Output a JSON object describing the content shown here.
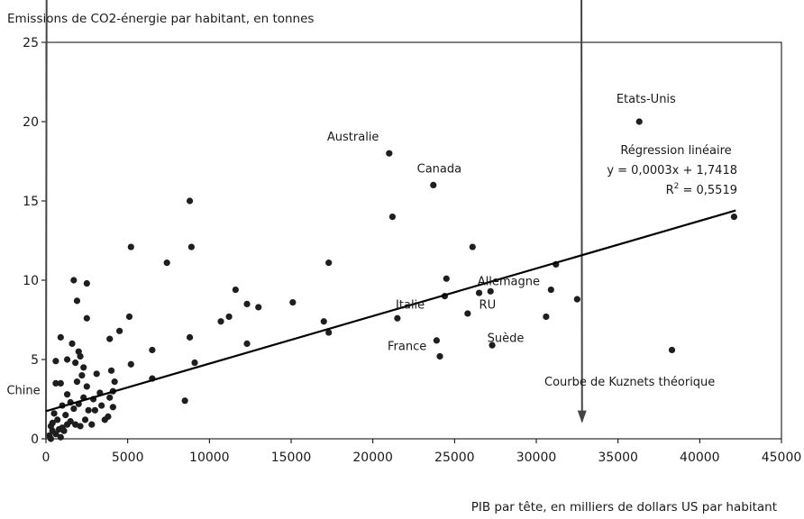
{
  "chart_data": {
    "type": "scatter",
    "title": "",
    "ylabel": "Emissions de CO2-énergie par habitant, en tonnes",
    "xlabel": "PIB par tête, en milliers de dollars US par habitant",
    "xlim": [
      0,
      45000
    ],
    "ylim": [
      0,
      25
    ],
    "x_ticks": [
      "0",
      "5000",
      "10000",
      "15000",
      "20000",
      "25000",
      "30000",
      "35000",
      "40000",
      "45000"
    ],
    "y_ticks": [
      "0",
      "5",
      "10",
      "15",
      "20",
      "25"
    ],
    "grid": false,
    "regression": {
      "title": "Régression linéaire",
      "equation": "y = 0,0003x + 1,7418",
      "r2_prefix": "R",
      "r2_sup": "2",
      "r2_suffix": " = 0,5519",
      "slope": 0.0003,
      "intercept": 1.7418,
      "x_range": [
        0,
        42200
      ]
    },
    "kuznets": {
      "label": "Courbe de Kuznets théorique",
      "start": [
        0,
        0
      ],
      "control": [
        15700,
        23200
      ],
      "end": [
        32800,
        1.1
      ]
    },
    "annotations": [
      {
        "text": "Etats-Unis",
        "x": 34900,
        "y": 21.2
      },
      {
        "text": "Australie",
        "x": 17200,
        "y": 18.8
      },
      {
        "text": "Canada",
        "x": 22700,
        "y": 16.8
      },
      {
        "text": "Allemagne",
        "x": 26400,
        "y": 9.7
      },
      {
        "text": "RU",
        "x": 26500,
        "y": 8.2
      },
      {
        "text": "Italie",
        "x": 21400,
        "y": 8.2
      },
      {
        "text": "France",
        "x": 20900,
        "y": 5.6
      },
      {
        "text": "Suède",
        "x": 27000,
        "y": 6.1
      },
      {
        "text": "Chine",
        "x": -2400,
        "y": 2.8
      }
    ],
    "points": [
      [
        36300,
        20.0
      ],
      [
        21000,
        18.0
      ],
      [
        23700,
        16.0
      ],
      [
        21200,
        14.0
      ],
      [
        42100,
        14.0
      ],
      [
        38300,
        5.6
      ],
      [
        26100,
        12.1
      ],
      [
        32500,
        8.8
      ],
      [
        31200,
        11.0
      ],
      [
        30900,
        9.4
      ],
      [
        30600,
        7.7
      ],
      [
        27200,
        9.3
      ],
      [
        26500,
        9.2
      ],
      [
        25800,
        7.9
      ],
      [
        24400,
        9.0
      ],
      [
        24500,
        10.1
      ],
      [
        23900,
        6.2
      ],
      [
        24100,
        5.2
      ],
      [
        27300,
        5.9
      ],
      [
        21500,
        7.6
      ],
      [
        17300,
        11.1
      ],
      [
        17300,
        6.7
      ],
      [
        17000,
        7.4
      ],
      [
        15100,
        8.6
      ],
      [
        13000,
        8.3
      ],
      [
        12300,
        8.5
      ],
      [
        12300,
        6.0
      ],
      [
        11600,
        9.4
      ],
      [
        11200,
        7.7
      ],
      [
        10700,
        7.4
      ],
      [
        8800,
        15.0
      ],
      [
        8900,
        12.1
      ],
      [
        8800,
        6.4
      ],
      [
        9100,
        4.8
      ],
      [
        8500,
        2.4
      ],
      [
        7400,
        11.1
      ],
      [
        6500,
        5.6
      ],
      [
        6500,
        3.8
      ],
      [
        5200,
        12.1
      ],
      [
        5100,
        7.7
      ],
      [
        5200,
        4.7
      ],
      [
        4500,
        6.8
      ],
      [
        3900,
        6.3
      ],
      [
        4000,
        4.3
      ],
      [
        4200,
        3.6
      ],
      [
        4100,
        3.0
      ],
      [
        3900,
        2.6
      ],
      [
        4100,
        2.0
      ],
      [
        3800,
        1.4
      ],
      [
        3600,
        1.2
      ],
      [
        3400,
        2.1
      ],
      [
        3300,
        2.9
      ],
      [
        2900,
        2.5
      ],
      [
        3100,
        4.1
      ],
      [
        3000,
        1.8
      ],
      [
        2500,
        9.8
      ],
      [
        1700,
        10.0
      ],
      [
        1900,
        8.7
      ],
      [
        2500,
        7.6
      ],
      [
        1600,
        6.0
      ],
      [
        2000,
        5.5
      ],
      [
        2100,
        5.2
      ],
      [
        1800,
        4.8
      ],
      [
        2300,
        4.5
      ],
      [
        2200,
        4.0
      ],
      [
        1900,
        3.6
      ],
      [
        2500,
        3.3
      ],
      [
        2300,
        2.6
      ],
      [
        2000,
        2.2
      ],
      [
        2600,
        1.8
      ],
      [
        2400,
        1.2
      ],
      [
        2100,
        0.8
      ],
      [
        2800,
        0.9
      ],
      [
        900,
        6.4
      ],
      [
        1300,
        5.0
      ],
      [
        600,
        4.9
      ],
      [
        600,
        3.5
      ],
      [
        900,
        3.5
      ],
      [
        1300,
        2.8
      ],
      [
        1500,
        2.3
      ],
      [
        1000,
        2.1
      ],
      [
        1200,
        1.5
      ],
      [
        1500,
        1.1
      ],
      [
        1800,
        0.9
      ],
      [
        1700,
        1.9
      ],
      [
        1300,
        0.9
      ],
      [
        1100,
        0.5
      ],
      [
        500,
        1.6
      ],
      [
        400,
        1.0
      ],
      [
        700,
        1.2
      ],
      [
        800,
        0.6
      ],
      [
        300,
        0.8
      ],
      [
        600,
        0.3
      ],
      [
        200,
        0.2
      ],
      [
        400,
        0.5
      ],
      [
        900,
        0.1
      ],
      [
        300,
        0.0
      ],
      [
        1000,
        0.7
      ]
    ]
  }
}
